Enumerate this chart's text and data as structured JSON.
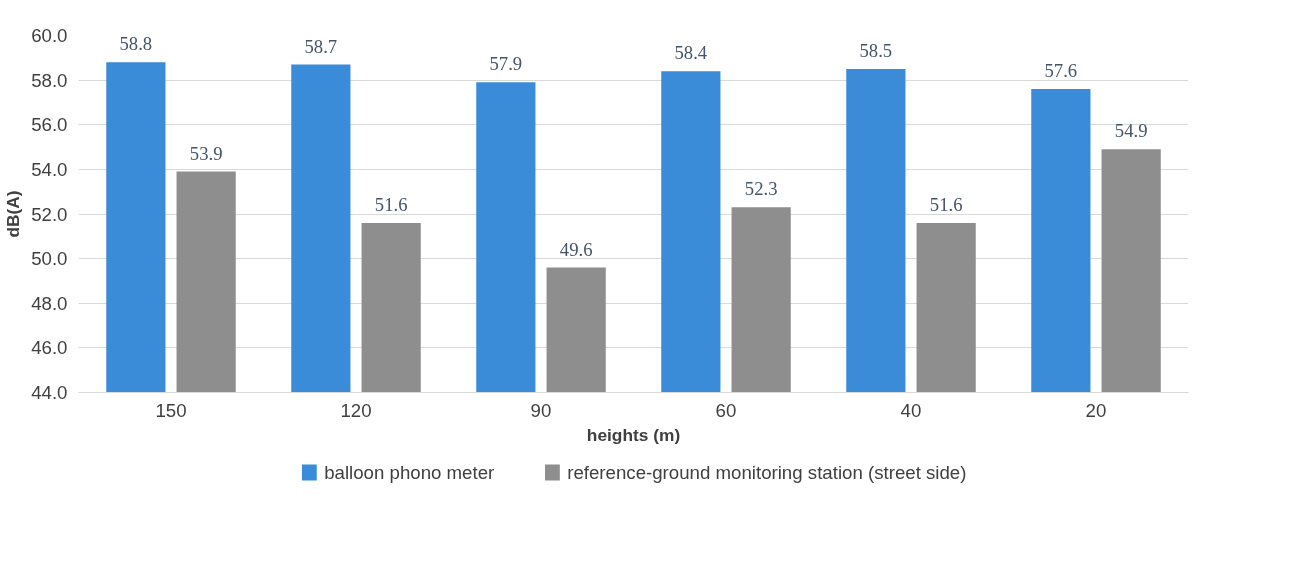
{
  "chart_data": {
    "type": "bar",
    "xlabel": "heights (m)",
    "ylabel": "dB(A)",
    "categories": [
      "150",
      "120",
      "90",
      "60",
      "40",
      "20"
    ],
    "series": [
      {
        "name": "balloon phono meter",
        "color": "#3a8bd8",
        "values": [
          58.8,
          58.7,
          57.9,
          58.4,
          58.5,
          57.6
        ]
      },
      {
        "name": "reference-ground monitoring station (street side)",
        "color": "#8e8e8e",
        "values": [
          53.9,
          51.6,
          49.6,
          52.3,
          51.6,
          54.9
        ]
      }
    ],
    "ylim": [
      44,
      60
    ],
    "yticks": [
      {
        "value": 44,
        "label": "44.0"
      },
      {
        "value": 46,
        "label": "46.0"
      },
      {
        "value": 48,
        "label": "48.0"
      },
      {
        "value": 50,
        "label": "50.0"
      },
      {
        "value": 52,
        "label": "52.0"
      },
      {
        "value": 54,
        "label": "54.0"
      },
      {
        "value": 56,
        "label": "56.0"
      },
      {
        "value": 58,
        "label": "58.0"
      },
      {
        "value": 60,
        "label": "60.0"
      }
    ],
    "grid": "y",
    "legend": "bottom",
    "data_labels": true
  }
}
